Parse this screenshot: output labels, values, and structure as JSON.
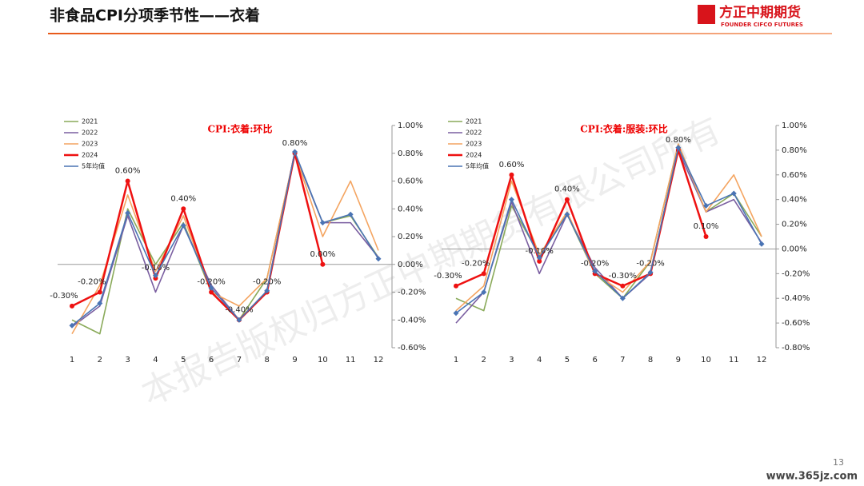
{
  "page": {
    "title": "非食品CPI分项季节性——衣着",
    "logo": "方正中期期货",
    "logo_sub": "FOUNDER CIFCO FUTURES",
    "page_number": "13",
    "watermark": "本报告版权归方正中期期货有限公司所有",
    "site": "www.365jz.com"
  },
  "chart_data": [
    {
      "type": "line",
      "title": "CPI:衣着:环比",
      "categories": [
        "1",
        "2",
        "3",
        "4",
        "5",
        "6",
        "7",
        "8",
        "9",
        "10",
        "11",
        "12"
      ],
      "ylim": [
        -0.6,
        1.0
      ],
      "yticks": [
        {
          "value": -0.6,
          "label": "-0.60%"
        },
        {
          "value": -0.4,
          "label": "-0.40%"
        },
        {
          "value": -0.2,
          "label": "-0.20%"
        },
        {
          "value": 0,
          "label": "0.00%"
        },
        {
          "value": 0.2,
          "label": "0.20%"
        },
        {
          "value": 0.4,
          "label": "0.40%"
        },
        {
          "value": 0.6,
          "label": "0.60%"
        },
        {
          "value": 0.8,
          "label": "0.80%"
        },
        {
          "value": 1.0,
          "label": "1.00%"
        }
      ],
      "series": [
        {
          "name": "2021",
          "color": "#8aaa5a",
          "values": [
            -0.4,
            -0.5,
            0.4,
            0.0,
            0.3,
            -0.2,
            -0.4,
            -0.1,
            0.8,
            0.3,
            0.35,
            0.05
          ]
        },
        {
          "name": "2022",
          "color": "#7a5ea0",
          "values": [
            -0.45,
            -0.3,
            0.35,
            -0.2,
            0.28,
            -0.15,
            -0.4,
            -0.2,
            0.8,
            0.3,
            0.3,
            0.05
          ]
        },
        {
          "name": "2023",
          "color": "#f4a460",
          "values": [
            -0.5,
            -0.15,
            0.5,
            -0.05,
            0.35,
            -0.2,
            -0.3,
            -0.1,
            0.8,
            0.2,
            0.6,
            0.1
          ]
        },
        {
          "name": "2024",
          "color": "#ee1111",
          "marker": "circle",
          "values": [
            -0.3,
            -0.2,
            0.6,
            -0.1,
            0.4,
            -0.2,
            -0.4,
            -0.2,
            0.8,
            0.0,
            null,
            null
          ],
          "value_labels": [
            "-0.30%",
            "-0.20%",
            "0.60%",
            "-0.10%",
            "0.40%",
            "-0.20%",
            "-0.40%",
            "-0.20%",
            "0.80%",
            "0.00%",
            null,
            null
          ]
        },
        {
          "name": "5年均值",
          "color": "#4a74b4",
          "marker": "diamond",
          "values": [
            -0.44,
            -0.28,
            0.37,
            -0.08,
            0.28,
            -0.17,
            -0.4,
            -0.19,
            0.81,
            0.3,
            0.36,
            0.04
          ]
        }
      ]
    },
    {
      "type": "line",
      "title": "CPI:衣着:服装:环比",
      "categories": [
        "1",
        "2",
        "3",
        "4",
        "5",
        "6",
        "7",
        "8",
        "9",
        "10",
        "11",
        "12"
      ],
      "ylim": [
        -0.8,
        1.0
      ],
      "yticks": [
        {
          "value": -0.8,
          "label": "-0.80%"
        },
        {
          "value": -0.6,
          "label": "-0.60%"
        },
        {
          "value": -0.4,
          "label": "-0.40%"
        },
        {
          "value": -0.2,
          "label": "-0.20%"
        },
        {
          "value": 0,
          "label": "0.00%"
        },
        {
          "value": 0.2,
          "label": "0.20%"
        },
        {
          "value": 0.4,
          "label": "0.40%"
        },
        {
          "value": 0.6,
          "label": "0.60%"
        },
        {
          "value": 0.8,
          "label": "0.80%"
        },
        {
          "value": 1.0,
          "label": "1.00%"
        }
      ],
      "series": [
        {
          "name": "2021",
          "color": "#8aaa5a",
          "values": [
            -0.4,
            -0.5,
            0.35,
            -0.05,
            0.28,
            -0.2,
            -0.4,
            -0.1,
            0.85,
            0.3,
            0.45,
            0.1
          ]
        },
        {
          "name": "2022",
          "color": "#7a5ea0",
          "values": [
            -0.6,
            -0.35,
            0.38,
            -0.2,
            0.28,
            -0.15,
            -0.4,
            -0.2,
            0.8,
            0.3,
            0.4,
            0.05
          ]
        },
        {
          "name": "2023",
          "color": "#f4a460",
          "values": [
            -0.5,
            -0.3,
            0.55,
            -0.05,
            0.3,
            -0.2,
            -0.35,
            -0.1,
            0.85,
            0.3,
            0.6,
            0.1
          ]
        },
        {
          "name": "2024",
          "color": "#ee1111",
          "marker": "circle",
          "values": [
            -0.3,
            -0.2,
            0.6,
            -0.1,
            0.4,
            -0.2,
            -0.3,
            -0.2,
            0.8,
            0.1,
            null,
            null
          ],
          "value_labels": [
            "-0.30%",
            "-0.20%",
            "0.60%",
            "-0.10%",
            "0.40%",
            "-0.20%",
            "-0.30%",
            "-0.20%",
            "0.80%",
            "0.10%",
            null,
            null
          ]
        },
        {
          "name": "5年均值",
          "color": "#4a74b4",
          "marker": "diamond",
          "values": [
            -0.52,
            -0.35,
            0.4,
            -0.07,
            0.28,
            -0.18,
            -0.4,
            -0.19,
            0.82,
            0.35,
            0.45,
            0.04
          ]
        }
      ]
    }
  ]
}
